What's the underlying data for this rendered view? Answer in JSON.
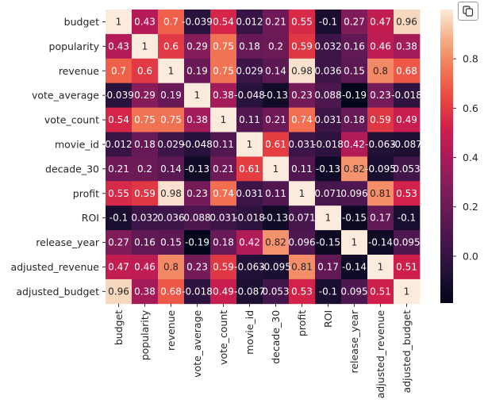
{
  "toolbar": {
    "copy_icon": "copy-icon"
  },
  "chart_data": {
    "type": "heatmap",
    "title": "",
    "xlabel": "",
    "ylabel": "",
    "colormap": "rocket",
    "vmin": -0.19,
    "vmax": 1,
    "colorbar_ticks": [
      "0.0",
      "0.2",
      "0.4",
      "0.6",
      "0.8"
    ],
    "labels": [
      "budget",
      "popularity",
      "revenue",
      "vote_average",
      "vote_count",
      "movie_id",
      "decade_30",
      "profit",
      "ROI",
      "release_year",
      "adjusted_revenue",
      "adjusted_budget"
    ],
    "values": [
      [
        1,
        0.43,
        0.7,
        -0.039,
        0.54,
        0.012,
        0.21,
        0.55,
        -0.1,
        0.27,
        0.47,
        0.96
      ],
      [
        0.43,
        1,
        0.6,
        0.29,
        0.75,
        0.18,
        0.2,
        0.59,
        0.032,
        0.16,
        0.46,
        0.38
      ],
      [
        0.7,
        0.6,
        1,
        0.19,
        0.75,
        0.029,
        0.14,
        0.98,
        0.036,
        0.15,
        0.8,
        0.68
      ],
      [
        -0.039,
        0.29,
        0.19,
        1,
        0.38,
        -0.048,
        -0.13,
        0.23,
        0.088,
        -0.19,
        0.23,
        -0.018
      ],
      [
        0.54,
        0.75,
        0.75,
        0.38,
        1,
        0.11,
        0.21,
        0.74,
        0.031,
        0.18,
        0.59,
        0.49
      ],
      [
        0.012,
        0.18,
        0.029,
        -0.048,
        0.11,
        1,
        0.61,
        0.031,
        -0.018,
        0.42,
        -0.063,
        -0.087
      ],
      [
        0.21,
        0.2,
        0.14,
        -0.13,
        0.21,
        0.61,
        1,
        0.11,
        -0.13,
        0.82,
        -0.095,
        0.053
      ],
      [
        0.55,
        0.59,
        0.98,
        0.23,
        0.74,
        0.031,
        0.11,
        1,
        0.071,
        0.096,
        0.81,
        0.53
      ],
      [
        -0.1,
        0.032,
        0.036,
        0.088,
        0.031,
        -0.018,
        -0.13,
        0.071,
        1,
        -0.15,
        0.17,
        -0.1
      ],
      [
        0.27,
        0.16,
        0.15,
        -0.19,
        0.18,
        0.42,
        0.82,
        0.096,
        -0.15,
        1,
        -0.14,
        0.095
      ],
      [
        0.47,
        0.46,
        0.8,
        0.23,
        0.59,
        -0.063,
        -0.095,
        0.81,
        0.17,
        -0.14,
        1,
        0.51
      ],
      [
        0.96,
        0.38,
        0.68,
        -0.018,
        0.49,
        -0.087,
        0.053,
        0.53,
        -0.1,
        0.095,
        0.51,
        1
      ]
    ],
    "annotations": [
      [
        "1",
        "0.43",
        "0.7",
        "-0.039",
        "0.54",
        "0.012",
        "0.21",
        "0.55",
        "-0.1",
        "0.27",
        "0.47",
        "0.96"
      ],
      [
        "0.43",
        "1",
        "0.6",
        "0.29",
        "0.75",
        "0.18",
        "0.2",
        "0.59",
        "0.032",
        "0.16",
        "0.46",
        "0.38"
      ],
      [
        "0.7",
        "0.6",
        "1",
        "0.19",
        "0.75",
        "0.029",
        "0.14",
        "0.98",
        "0.036",
        "0.15",
        "0.8",
        "0.68"
      ],
      [
        "-0.039",
        "0.29",
        "0.19",
        "1",
        "0.38",
        "-0.048",
        "-0.13",
        "0.23",
        "0.088",
        "-0.19",
        "0.23",
        "-0.018"
      ],
      [
        "0.54",
        "0.75",
        "0.75",
        "0.38",
        "1",
        "0.11",
        "0.21",
        "0.74",
        "0.031",
        "0.18",
        "0.59",
        "0.49"
      ],
      [
        "0.012",
        "0.18",
        "0.029",
        "-0.048",
        "0.11",
        "1",
        "0.61",
        "0.031",
        "-0.018",
        "0.42",
        "-0.063",
        "-0.087"
      ],
      [
        "0.21",
        "0.2",
        "0.14",
        "-0.13",
        "0.21",
        "0.61",
        "1",
        "0.11",
        "-0.13",
        "0.82",
        "-0.095",
        "0.053"
      ],
      [
        "0.55",
        "0.59",
        "0.98",
        "0.23",
        "0.74",
        "0.031",
        "0.11",
        "1",
        "0.071",
        "0.096",
        "0.81",
        "0.53"
      ],
      [
        "-0.1",
        "0.032",
        "0.036",
        "0.088",
        "0.031",
        "-0.018",
        "-0.13",
        "0.071",
        "1",
        "-0.15",
        "0.17",
        "-0.1"
      ],
      [
        "0.27",
        "0.16",
        "0.15",
        "-0.19",
        "0.18",
        "0.42",
        "0.82",
        "0.096",
        "-0.15",
        "1",
        "-0.14",
        "0.095"
      ],
      [
        "0.47",
        "0.46",
        "0.8",
        "0.23",
        "0.59",
        "-0.063",
        "-0.095",
        "0.81",
        "0.17",
        "-0.14",
        "1",
        "0.51"
      ],
      [
        "0.96",
        "0.38",
        "0.68",
        "-0.018",
        "0.49",
        "-0.087",
        "0.053",
        "0.53",
        "-0.1",
        "0.095",
        "0.51",
        "1"
      ]
    ]
  }
}
